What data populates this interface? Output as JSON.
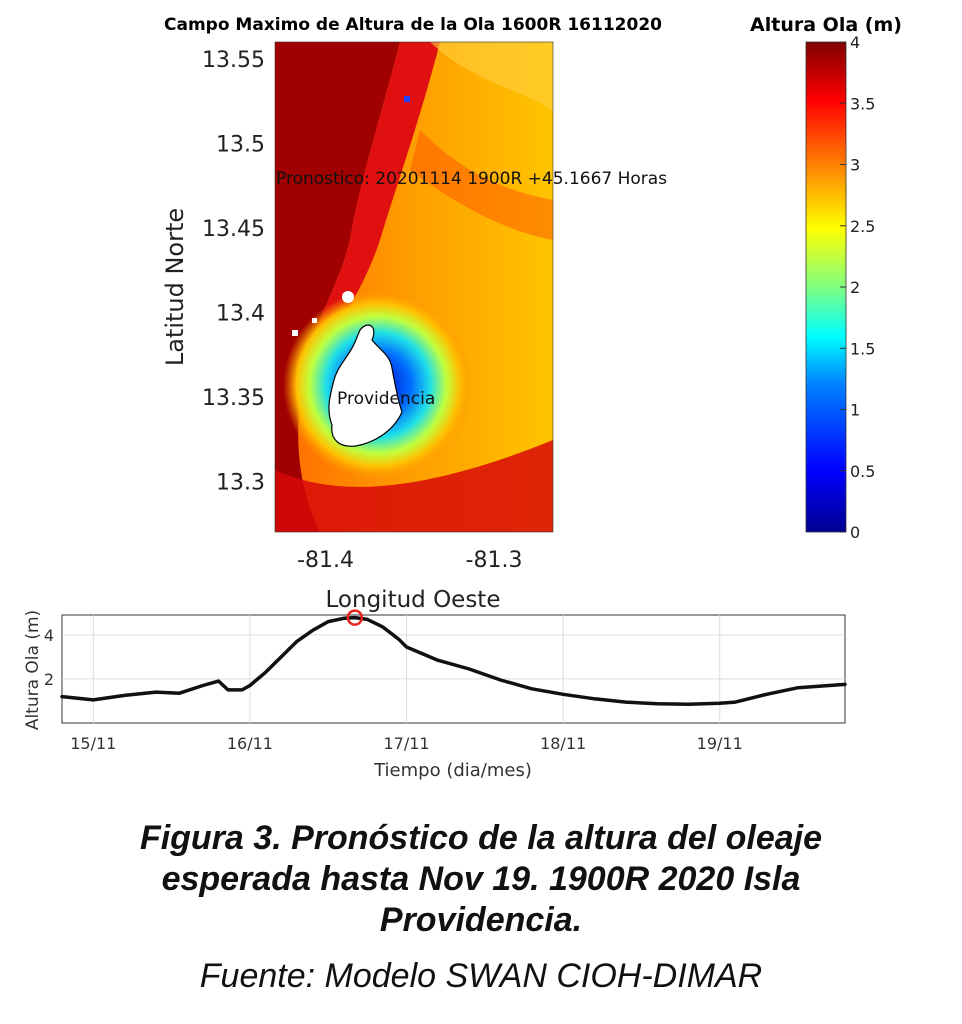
{
  "chart_data": [
    {
      "type": "heatmap",
      "title": "Campo Maximo de Altura de la Ola 1600R 16112020",
      "xlabel": "Longitud Oeste",
      "ylabel": "Latitud Norte",
      "x_ticks": [
        -81.4,
        -81.3
      ],
      "y_ticks": [
        13.3,
        13.35,
        13.4,
        13.45,
        13.5,
        13.55
      ],
      "xlim": [
        -81.43,
        -81.265
      ],
      "ylim": [
        13.27,
        13.56
      ],
      "colorbar_label": "Altura Ola (m)",
      "colorbar_range": [
        0,
        4
      ],
      "colorbar_ticks": [
        0,
        0.5,
        1,
        1.5,
        2,
        2.5,
        3,
        3.5,
        4
      ],
      "colormap": [
        "#00008f",
        "#0000ff",
        "#0080ff",
        "#00ffff",
        "#80ff80",
        "#ffff00",
        "#ff8000",
        "#ff0000",
        "#800000"
      ],
      "annotations": [
        {
          "text": "Pronostico: 20201114 1900R +45.1667 Horas"
        },
        {
          "text": "Providencia"
        }
      ]
    },
    {
      "type": "line",
      "xlabel": "Tiempo (dia/mes)",
      "ylabel": "Altura Ola (m)",
      "xlim": [
        14.8,
        19.8
      ],
      "ylim": [
        0,
        4.9
      ],
      "x_ticks": [
        15,
        16,
        17,
        18,
        19
      ],
      "x_tick_labels": [
        "15/11",
        "16/11",
        "17/11",
        "18/11",
        "19/11"
      ],
      "y_ticks": [
        2,
        4
      ],
      "grid": true,
      "series": [
        {
          "x": [
            14.8,
            15.0,
            15.2,
            15.4,
            15.55,
            15.7,
            15.8,
            15.86,
            15.95,
            16.0,
            16.1,
            16.2,
            16.3,
            16.4,
            16.5,
            16.6,
            16.67,
            16.75,
            16.85,
            16.95,
            17.0,
            17.2,
            17.4,
            17.6,
            17.8,
            18.0,
            18.2,
            18.4,
            18.6,
            18.8,
            19.0,
            19.1,
            19.3,
            19.5,
            19.8
          ],
          "y": [
            1.2,
            1.05,
            1.25,
            1.4,
            1.35,
            1.7,
            1.9,
            1.5,
            1.5,
            1.7,
            2.3,
            3.0,
            3.7,
            4.2,
            4.6,
            4.75,
            4.78,
            4.7,
            4.35,
            3.8,
            3.45,
            2.85,
            2.45,
            1.95,
            1.55,
            1.3,
            1.1,
            0.95,
            0.87,
            0.85,
            0.9,
            0.95,
            1.3,
            1.6,
            1.75
          ]
        }
      ],
      "marker": {
        "x": 16.67,
        "y": 4.78,
        "color": "#e8221c"
      }
    }
  ],
  "caption": {
    "line1": "Figura 3. Pronóstico de la altura del oleaje",
    "line2": "esperada hasta Nov 19. 1900R 2020 Isla",
    "line3": "Providencia.",
    "source": "Fuente: Modelo SWAN CIOH-DIMAR"
  }
}
